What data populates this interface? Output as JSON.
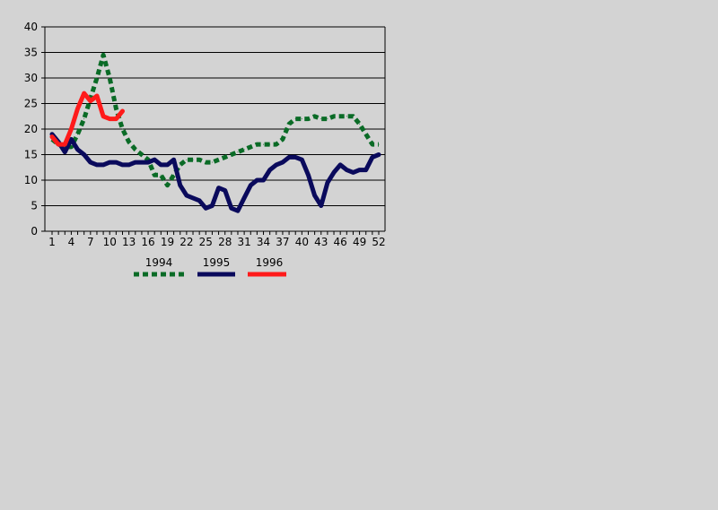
{
  "chart_data": {
    "type": "line",
    "title": "",
    "xlabel": "",
    "ylabel": "",
    "xlim": [
      1,
      52
    ],
    "ylim": [
      0,
      40
    ],
    "y_ticks": [
      0,
      5,
      10,
      15,
      20,
      25,
      30,
      35,
      40
    ],
    "x_ticks": [
      1,
      4,
      7,
      10,
      13,
      16,
      19,
      22,
      25,
      28,
      31,
      34,
      37,
      40,
      43,
      46,
      49,
      52
    ],
    "grid": "horizontal",
    "legend": "bottom",
    "series": [
      {
        "name": "1994",
        "color": "#0a6b26",
        "style": "dashed",
        "x": [
          1,
          2,
          3,
          4,
          5,
          6,
          7,
          8,
          9,
          10,
          11,
          12,
          13,
          14,
          15,
          16,
          17,
          18,
          19,
          20,
          21,
          22,
          23,
          24,
          25,
          26,
          27,
          28,
          29,
          30,
          31,
          32,
          33,
          34,
          35,
          36,
          37,
          38,
          39,
          40,
          41,
          42,
          43,
          44,
          45,
          46,
          47,
          48,
          49,
          50,
          51,
          52
        ],
        "values": [
          18,
          17,
          16.5,
          16.5,
          19,
          22,
          26,
          30,
          34.5,
          30,
          24,
          20,
          17.5,
          16,
          15,
          14,
          11,
          11,
          9,
          11,
          13,
          14,
          14,
          14,
          13.5,
          13.5,
          14,
          14.5,
          15,
          15.5,
          16,
          16.5,
          17,
          17,
          17,
          17,
          18,
          21,
          22,
          22,
          22,
          22.5,
          22,
          22,
          22.5,
          22.5,
          22.5,
          22.5,
          21,
          19,
          17,
          17
        ]
      },
      {
        "name": "1995",
        "color": "#0a0a5c",
        "style": "solid",
        "x": [
          1,
          2,
          3,
          4,
          5,
          6,
          7,
          8,
          9,
          10,
          11,
          12,
          13,
          14,
          15,
          16,
          17,
          18,
          19,
          20,
          21,
          22,
          23,
          24,
          25,
          26,
          27,
          28,
          29,
          30,
          31,
          32,
          33,
          34,
          35,
          36,
          37,
          38,
          39,
          40,
          41,
          42,
          43,
          44,
          45,
          46,
          47,
          48,
          49,
          50,
          51,
          52
        ],
        "values": [
          19,
          17.5,
          15.5,
          18,
          16,
          15,
          13.5,
          13,
          13,
          13.5,
          13.5,
          13,
          13,
          13.5,
          13.5,
          13.5,
          14,
          13,
          13,
          14,
          9,
          7,
          6.5,
          6,
          4.5,
          5,
          8.5,
          8,
          4.5,
          4,
          6.5,
          9,
          10,
          10,
          12,
          13,
          13.5,
          14.5,
          14.5,
          14,
          11,
          7,
          5,
          9.5,
          11.5,
          13,
          12,
          11.5,
          12,
          12,
          14.5,
          15
        ]
      },
      {
        "name": "1996",
        "color": "#ff1a1a",
        "style": "solid",
        "x": [
          1,
          2,
          3,
          4,
          5,
          6,
          7,
          8,
          9,
          10,
          11,
          12
        ],
        "values": [
          18.5,
          17,
          17,
          20,
          24,
          27,
          25.5,
          26.5,
          22.5,
          22,
          22,
          23.5
        ]
      }
    ]
  }
}
